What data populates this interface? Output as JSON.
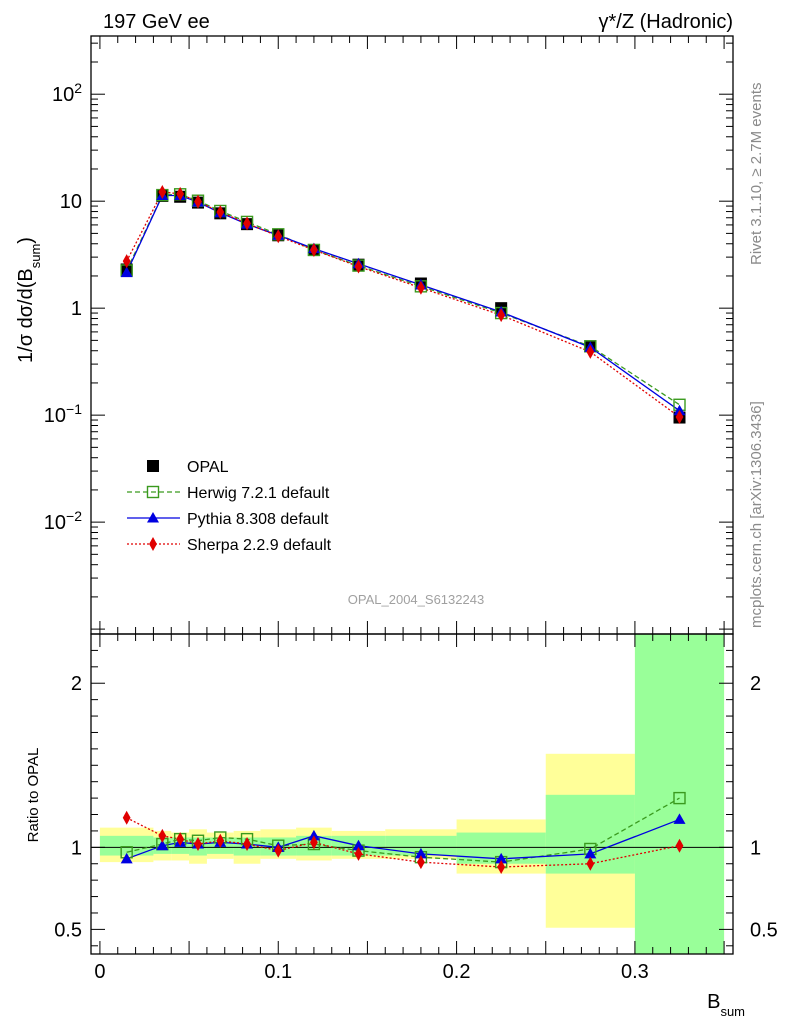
{
  "header": {
    "left": "197 GeV ee",
    "right": "γ*/Z (Hadronic)"
  },
  "side_labels": {
    "rivet": "Rivet 3.1.10, ≥ 2.7M events",
    "mcplots": "mcplots.cern.ch [arXiv:1306.3436]"
  },
  "watermark": "OPAL_2004_S6132243",
  "colors": {
    "data": "#000000",
    "herwig": "#3a9a1e",
    "pythia": "#0000e0",
    "sherpa": "#e00000",
    "band_inner": "#99ff99",
    "band_outer": "#ffff99"
  },
  "chart_data": [
    {
      "type": "line",
      "panel": "main",
      "ylabel": "1/σ dσ/d(B_sum)",
      "yscale": "log",
      "xlim": [
        -0.005,
        0.355
      ],
      "ylim": [
        0.0009,
        350
      ],
      "y_ticks": [
        {
          "value": 0.01,
          "label": "10",
          "sup": "−2"
        },
        {
          "value": 0.1,
          "label": "10",
          "sup": "−1"
        },
        {
          "value": 1,
          "label": "1",
          "sup": ""
        },
        {
          "value": 10,
          "label": "10",
          "sup": ""
        },
        {
          "value": 100,
          "label": "10",
          "sup": "2"
        }
      ],
      "legend_position": "lower-left",
      "x": [
        0.015,
        0.035,
        0.045,
        0.055,
        0.0675,
        0.0825,
        0.1,
        0.12,
        0.145,
        0.18,
        0.225,
        0.275,
        0.325
      ],
      "series": [
        {
          "name": "OPAL",
          "key": "data",
          "marker": "square",
          "values": [
            2.3,
            11.2,
            11.0,
            9.7,
            7.7,
            6.1,
            4.8,
            3.5,
            2.55,
            1.7,
            1.0,
            0.44,
            0.095
          ]
        },
        {
          "name": "Herwig 7.2.1 default",
          "key": "herwig",
          "marker": "open-square",
          "dash": "5,3",
          "values": [
            2.25,
            11.4,
            11.6,
            10.1,
            8.1,
            6.4,
            4.9,
            3.5,
            2.5,
            1.6,
            0.9,
            0.44,
            0.125
          ]
        },
        {
          "name": "Pythia 8.308 default",
          "key": "pythia",
          "marker": "triangle",
          "dash": "",
          "values": [
            2.15,
            11.3,
            11.3,
            9.8,
            7.8,
            6.1,
            4.8,
            3.6,
            2.6,
            1.65,
            0.92,
            0.43,
            0.11
          ]
        },
        {
          "name": "Sherpa 2.2.9 default",
          "key": "sherpa",
          "marker": "diamond",
          "dash": "2,2",
          "values": [
            2.75,
            12.2,
            11.7,
            9.9,
            7.9,
            6.2,
            4.7,
            3.5,
            2.45,
            1.55,
            0.86,
            0.39,
            0.096
          ]
        }
      ]
    },
    {
      "type": "line",
      "panel": "ratio",
      "xlabel": "B_sum",
      "ylabel": "Ratio to OPAL",
      "xlim": [
        -0.005,
        0.355
      ],
      "ylim": [
        0.35,
        2.3
      ],
      "x_ticks": [
        0,
        0.1,
        0.2,
        0.3
      ],
      "x_tick_labels": [
        "0",
        "0.1",
        "0.2",
        "0.3"
      ],
      "y_ticks": [
        0.5,
        1,
        2
      ],
      "y_tick_labels": [
        "0.5",
        "1",
        "2"
      ],
      "bands": {
        "edges": [
          0.0,
          0.03,
          0.04,
          0.05,
          0.06,
          0.075,
          0.09,
          0.11,
          0.13,
          0.16,
          0.2,
          0.25,
          0.3,
          0.35
        ],
        "inner": [
          [
            0.95,
            1.07
          ],
          [
            0.96,
            1.06
          ],
          [
            0.96,
            1.06
          ],
          [
            0.95,
            1.06
          ],
          [
            0.96,
            1.06
          ],
          [
            0.95,
            1.06
          ],
          [
            0.95,
            1.06
          ],
          [
            0.95,
            1.07
          ],
          [
            0.95,
            1.07
          ],
          [
            0.95,
            1.07
          ],
          [
            0.9,
            1.09
          ],
          [
            0.84,
            1.32
          ],
          [
            0.35,
            2.3
          ]
        ],
        "outer": [
          [
            0.91,
            1.12
          ],
          [
            0.92,
            1.1
          ],
          [
            0.92,
            1.09
          ],
          [
            0.9,
            1.11
          ],
          [
            0.93,
            1.09
          ],
          [
            0.9,
            1.1
          ],
          [
            0.93,
            1.11
          ],
          [
            0.92,
            1.12
          ],
          [
            0.93,
            1.1
          ],
          [
            0.93,
            1.11
          ],
          [
            0.84,
            1.17
          ],
          [
            0.51,
            1.57
          ],
          [
            0.35,
            2.3
          ]
        ]
      },
      "x": [
        0.015,
        0.035,
        0.045,
        0.055,
        0.0675,
        0.0825,
        0.1,
        0.12,
        0.145,
        0.18,
        0.225,
        0.275,
        0.325
      ],
      "series": [
        {
          "name": "Herwig 7.2.1 default",
          "key": "herwig",
          "marker": "open-square",
          "dash": "5,3",
          "values": [
            0.97,
            1.02,
            1.05,
            1.04,
            1.06,
            1.05,
            1.01,
            1.02,
            0.98,
            0.94,
            0.91,
            0.99,
            1.3
          ]
        },
        {
          "name": "Pythia 8.308 default",
          "key": "pythia",
          "marker": "triangle",
          "dash": "",
          "values": [
            0.93,
            1.01,
            1.03,
            1.02,
            1.03,
            1.02,
            1.0,
            1.07,
            1.01,
            0.96,
            0.93,
            0.96,
            1.17
          ]
        },
        {
          "name": "Sherpa 2.2.9 default",
          "key": "sherpa",
          "marker": "diamond",
          "dash": "2,2",
          "values": [
            1.18,
            1.07,
            1.05,
            1.02,
            1.04,
            1.02,
            0.98,
            1.03,
            0.96,
            0.91,
            0.88,
            0.9,
            1.01
          ]
        }
      ]
    }
  ]
}
